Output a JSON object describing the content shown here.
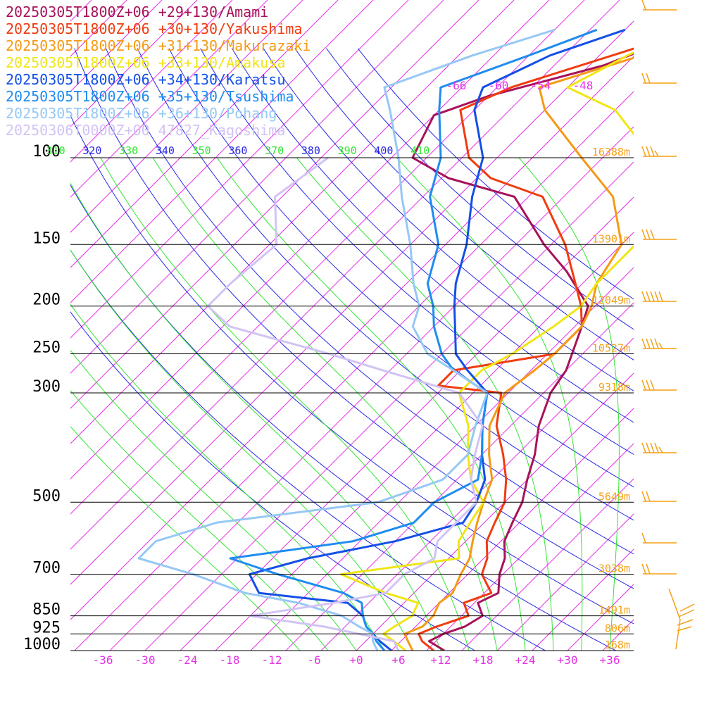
{
  "chart_data": {
    "type": "line",
    "title": "",
    "xlabel": "",
    "ylabel": "",
    "plot": {
      "x_range": [
        -40,
        40
      ],
      "p_top": 100,
      "p_bottom": 1000,
      "skew_deg": 45
    },
    "y_axis": {
      "pressure_levels": [
        100,
        150,
        200,
        250,
        300,
        500,
        700,
        850,
        925,
        1000
      ],
      "labels": [
        "100",
        "150",
        "200",
        "250",
        "300",
        "500",
        "700",
        "850",
        "925",
        "1000"
      ]
    },
    "x_axis": {
      "ticks": [
        -36,
        -30,
        -24,
        -18,
        -12,
        -6,
        0,
        6,
        12,
        18,
        24,
        30,
        36
      ],
      "labels": [
        "-36",
        "-30",
        "-24",
        "-18",
        "-12",
        "-6",
        "+0",
        "+6",
        "+12",
        "+18",
        "+24",
        "+30",
        "+36"
      ]
    },
    "upper_temp_labels": [
      "-66",
      "-60",
      "-54",
      "-48"
    ],
    "theta_labels": [
      "310",
      "320",
      "330",
      "340",
      "350",
      "360",
      "370",
      "380",
      "390",
      "400",
      "410"
    ],
    "heights": [
      {
        "p": 100,
        "label": "16388m"
      },
      {
        "p": 150,
        "label": "13901m"
      },
      {
        "p": 200,
        "label": "12049m"
      },
      {
        "p": 250,
        "label": "10527m"
      },
      {
        "p": 300,
        "label": "9318m"
      },
      {
        "p": 500,
        "label": "5649m"
      },
      {
        "p": 700,
        "label": "3038m"
      },
      {
        "p": 850,
        "label": "1491m"
      },
      {
        "p": 925,
        "label": "806m"
      },
      {
        "p": 1000,
        "label": "168m"
      }
    ],
    "series": [
      {
        "name": "20250305T1800Z+06 +29+130/Amami",
        "color": "#a8125a"
      },
      {
        "name": "20250305T1800Z+06 +30+130/Yakushima",
        "color": "#f03c0f"
      },
      {
        "name": "20250305T1800Z+06 +31+130/Makurazaki",
        "color": "#f59a14"
      },
      {
        "name": "20250305T1800Z+06 +33+130/Amakusa",
        "color": "#f0e614"
      },
      {
        "name": "20250305T1800Z+06 +34+130/Karatsu",
        "color": "#1450e6"
      },
      {
        "name": "20250305T1800Z+06 +35+130/Tsushima",
        "color": "#1e8cf0"
      },
      {
        "name": "20250305T1800Z+06 +36+130/Pohang",
        "color": "#96c8f5"
      },
      {
        "name": "20250306T0000Z+00 47827_Kagoshima",
        "color": "#d2c3f5"
      }
    ],
    "colors": {
      "isobar": "#000000",
      "isotherm": "#e632e6",
      "dry_adiabat": "#2828e6",
      "moist_adiabat": "#32e632",
      "label_temp": "#e632e6",
      "label_height": "#f5a014",
      "wind_barb": "#f5a014"
    }
  }
}
